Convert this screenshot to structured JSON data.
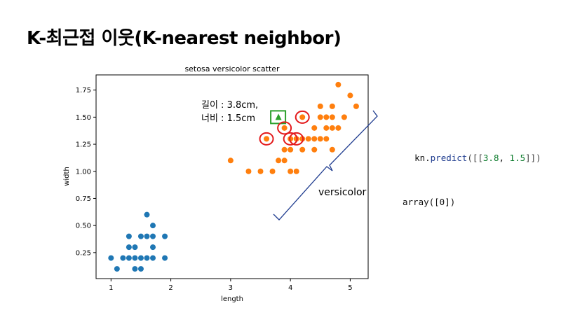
{
  "slide": {
    "title": "K-최근접 이웃(K-nearest neighbor)"
  },
  "annotations": {
    "point_length": "길이 : 3.8cm,",
    "point_width": "너비 : 1.5cm",
    "cluster_label": "versicolor"
  },
  "code": {
    "predict_prefix": "kn.",
    "predict_fn": "predict",
    "predict_open": "([[",
    "predict_x": "3.8",
    "predict_sep": ", ",
    "predict_y": "1.5",
    "predict_close": "]])",
    "output": "array([0])"
  },
  "colors": {
    "setosa": "#1f77b4",
    "versicolor": "#ff7f0e",
    "new_point": "#2ca02c",
    "highlight": "#e31a1c",
    "bracket": "#1f3c8f"
  },
  "chart_data": {
    "type": "scatter",
    "title": "setosa versicolor scatter",
    "xlabel": "length",
    "ylabel": "width",
    "xlim": [
      0.75,
      5.3
    ],
    "ylim": [
      0.01,
      1.89
    ],
    "xticks": [
      1,
      2,
      3,
      4,
      5
    ],
    "yticks": [
      0.25,
      0.5,
      0.75,
      1.0,
      1.25,
      1.5,
      1.75
    ],
    "ytick_labels": [
      "0.25",
      "0.50",
      "0.75",
      "1.00",
      "1.25",
      "1.50",
      "1.75"
    ],
    "grid": false,
    "series": [
      {
        "color_key": "setosa",
        "points": [
          [
            1.0,
            0.2
          ],
          [
            1.1,
            0.1
          ],
          [
            1.2,
            0.2
          ],
          [
            1.3,
            0.2
          ],
          [
            1.3,
            0.3
          ],
          [
            1.3,
            0.4
          ],
          [
            1.4,
            0.1
          ],
          [
            1.4,
            0.2
          ],
          [
            1.4,
            0.3
          ],
          [
            1.5,
            0.1
          ],
          [
            1.5,
            0.2
          ],
          [
            1.5,
            0.4
          ],
          [
            1.6,
            0.2
          ],
          [
            1.6,
            0.4
          ],
          [
            1.6,
            0.6
          ],
          [
            1.7,
            0.2
          ],
          [
            1.7,
            0.3
          ],
          [
            1.7,
            0.4
          ],
          [
            1.7,
            0.5
          ],
          [
            1.9,
            0.2
          ],
          [
            1.9,
            0.4
          ]
        ]
      },
      {
        "color_key": "versicolor",
        "points": [
          [
            3.0,
            1.1
          ],
          [
            3.3,
            1.0
          ],
          [
            3.5,
            1.0
          ],
          [
            3.6,
            1.3
          ],
          [
            3.7,
            1.0
          ],
          [
            3.8,
            1.1
          ],
          [
            3.9,
            1.1
          ],
          [
            3.9,
            1.2
          ],
          [
            3.9,
            1.4
          ],
          [
            4.0,
            1.0
          ],
          [
            4.0,
            1.2
          ],
          [
            4.0,
            1.3
          ],
          [
            4.1,
            1.0
          ],
          [
            4.1,
            1.3
          ],
          [
            4.2,
            1.2
          ],
          [
            4.2,
            1.3
          ],
          [
            4.2,
            1.5
          ],
          [
            4.3,
            1.3
          ],
          [
            4.4,
            1.2
          ],
          [
            4.4,
            1.3
          ],
          [
            4.4,
            1.4
          ],
          [
            4.5,
            1.3
          ],
          [
            4.5,
            1.5
          ],
          [
            4.5,
            1.6
          ],
          [
            4.6,
            1.3
          ],
          [
            4.6,
            1.4
          ],
          [
            4.6,
            1.5
          ],
          [
            4.7,
            1.2
          ],
          [
            4.7,
            1.4
          ],
          [
            4.7,
            1.5
          ],
          [
            4.7,
            1.6
          ],
          [
            4.8,
            1.4
          ],
          [
            4.8,
            1.8
          ],
          [
            4.9,
            1.5
          ],
          [
            5.0,
            1.7
          ],
          [
            5.1,
            1.6
          ]
        ]
      }
    ],
    "new_point": [
      3.8,
      1.5
    ],
    "nearest_neighbors": [
      [
        3.6,
        1.3
      ],
      [
        3.9,
        1.4
      ],
      [
        4.0,
        1.3
      ],
      [
        4.1,
        1.3
      ],
      [
        4.2,
        1.5
      ]
    ]
  }
}
